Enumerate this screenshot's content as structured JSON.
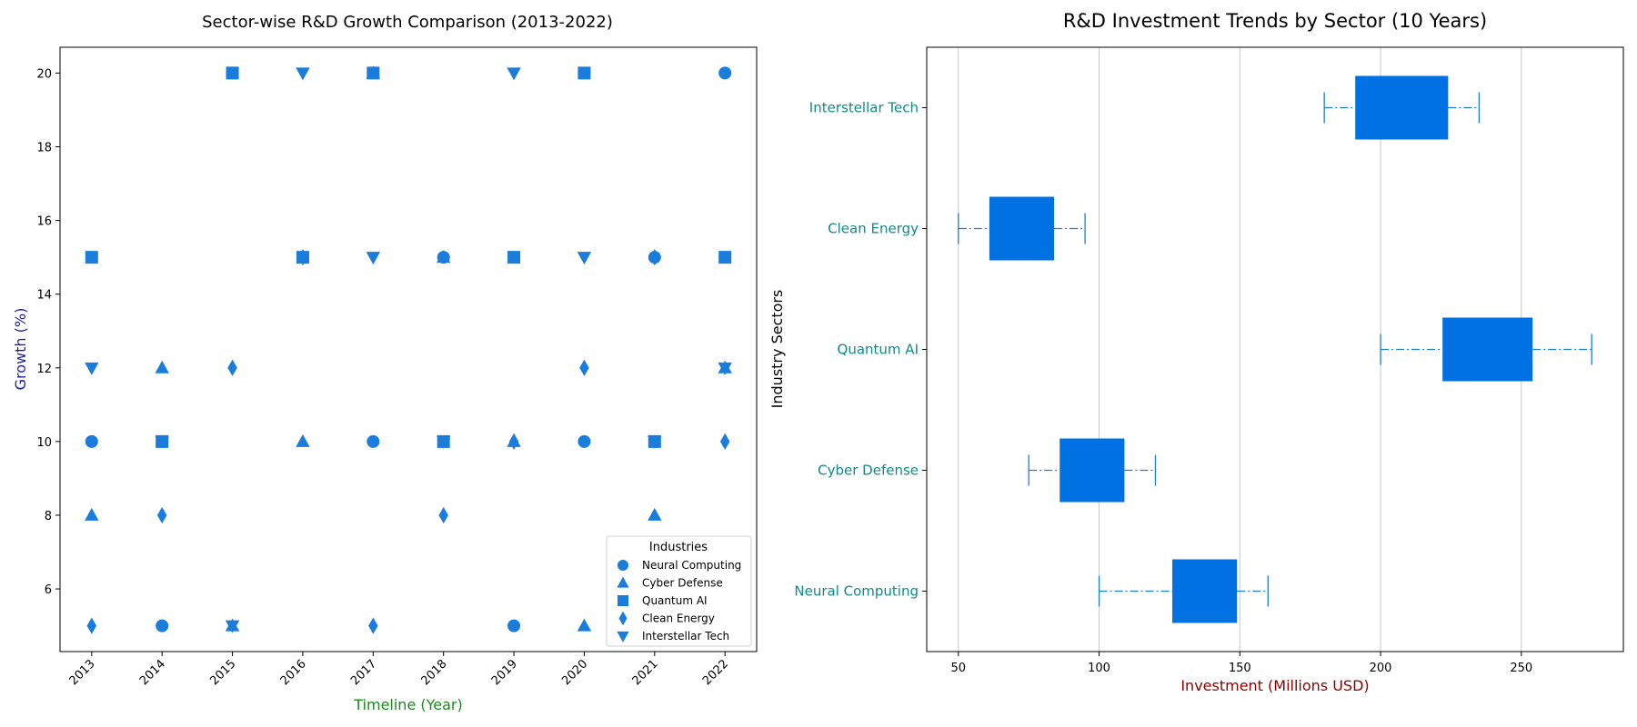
{
  "colors": {
    "marker": "#1a7ddb",
    "box": "#0071e3",
    "whisker": "#1a7ddb",
    "sector_label": "#0f8a8a",
    "left_ylabel": "#1f1f9e",
    "left_xlabel": "#1a8a1a",
    "right_xlabel": "#8b0000",
    "grid": "#c8c8c8"
  },
  "chart_data": [
    {
      "type": "scatter",
      "title": "Sector-wise R&D Growth Comparison (2013-2022)",
      "xlabel": "Timeline (Year)",
      "ylabel": "Growth (%)",
      "x_ticks": [
        "2013",
        "2014",
        "2015",
        "2016",
        "2017",
        "2018",
        "2019",
        "2020",
        "2021",
        "2022"
      ],
      "y_ticks": [
        6,
        8,
        10,
        12,
        14,
        16,
        18,
        20
      ],
      "ylim": [
        4.3,
        20.7
      ],
      "grid": false,
      "legend": {
        "title": "Industries",
        "placement": "lower right"
      },
      "series": [
        {
          "name": "Neural Computing",
          "marker": "circle",
          "x": [
            2013,
            2014,
            2015,
            2016,
            2017,
            2018,
            2019,
            2020,
            2021,
            2022
          ],
          "y": [
            10,
            5,
            20,
            15,
            10,
            15,
            5,
            10,
            15,
            20
          ]
        },
        {
          "name": "Cyber Defense",
          "marker": "triangle-up",
          "x": [
            2013,
            2014,
            2015,
            2016,
            2017,
            2018,
            2019,
            2020,
            2021,
            2022
          ],
          "y": [
            8,
            12,
            5,
            10,
            20,
            15,
            10,
            5,
            8,
            12
          ]
        },
        {
          "name": "Quantum AI",
          "marker": "square",
          "x": [
            2013,
            2014,
            2015,
            2016,
            2017,
            2018,
            2019,
            2020,
            2021,
            2022
          ],
          "y": [
            15,
            10,
            20,
            15,
            20,
            10,
            15,
            20,
            10,
            15
          ]
        },
        {
          "name": "Clean Energy",
          "marker": "diamond",
          "x": [
            2013,
            2014,
            2015,
            2016,
            2017,
            2018,
            2019,
            2020,
            2021,
            2022
          ],
          "y": [
            5,
            8,
            12,
            15,
            5,
            8,
            10,
            12,
            15,
            10
          ]
        },
        {
          "name": "Interstellar Tech",
          "marker": "triangle-down",
          "x": [
            2013,
            2014,
            2015,
            2016,
            2017,
            2018,
            2019,
            2020,
            2021,
            2022
          ],
          "y": [
            12,
            10,
            5,
            20,
            15,
            10,
            20,
            15,
            10,
            12
          ]
        }
      ]
    },
    {
      "type": "box",
      "orientation": "horizontal",
      "title": "R&D Investment Trends by Sector (10 Years)",
      "xlabel": "Investment (Millions USD)",
      "ylabel": "Industry Sectors",
      "x_ticks": [
        50,
        100,
        150,
        200,
        250
      ],
      "xlim": [
        38.75,
        286.25
      ],
      "grid": "vertical",
      "categories": [
        "Neural Computing",
        "Cyber Defense",
        "Quantum AI",
        "Clean Energy",
        "Interstellar Tech"
      ],
      "boxes": [
        {
          "name": "Neural Computing",
          "min": 100,
          "q1": 126,
          "q3": 149,
          "max": 160
        },
        {
          "name": "Cyber Defense",
          "min": 75,
          "q1": 86,
          "q3": 109,
          "max": 120
        },
        {
          "name": "Quantum AI",
          "min": 200,
          "q1": 222,
          "q3": 254,
          "max": 275
        },
        {
          "name": "Clean Energy",
          "min": 50,
          "q1": 61,
          "q3": 84,
          "max": 95
        },
        {
          "name": "Interstellar Tech",
          "min": 180,
          "q1": 191,
          "q3": 224,
          "max": 235
        }
      ]
    }
  ]
}
